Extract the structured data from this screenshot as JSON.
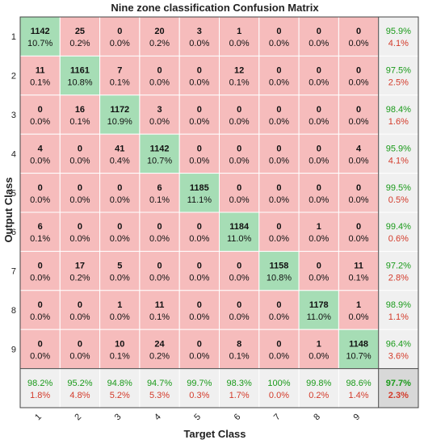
{
  "chart_data": {
    "type": "heatmap",
    "title": "Nine zone classification Confusion Matrix",
    "xlabel": "Target Class",
    "ylabel": "Output Class",
    "x_tick_labels": [
      "1",
      "2",
      "3",
      "4",
      "5",
      "6",
      "7",
      "8",
      "9"
    ],
    "y_tick_labels": [
      "1",
      "2",
      "3",
      "4",
      "5",
      "6",
      "7",
      "8",
      "9"
    ],
    "counts": [
      [
        1142,
        25,
        0,
        20,
        3,
        1,
        0,
        0,
        0
      ],
      [
        11,
        1161,
        7,
        0,
        0,
        12,
        0,
        0,
        0
      ],
      [
        0,
        16,
        1172,
        3,
        0,
        0,
        0,
        0,
        0
      ],
      [
        4,
        0,
        41,
        1142,
        0,
        0,
        0,
        0,
        4
      ],
      [
        0,
        0,
        0,
        6,
        1185,
        0,
        0,
        0,
        0
      ],
      [
        6,
        0,
        0,
        0,
        0,
        1184,
        0,
        1,
        0
      ],
      [
        0,
        17,
        5,
        0,
        0,
        0,
        1158,
        0,
        11
      ],
      [
        0,
        0,
        1,
        11,
        0,
        0,
        0,
        1178,
        1
      ],
      [
        0,
        0,
        10,
        24,
        0,
        8,
        0,
        1,
        1148
      ]
    ],
    "percents": [
      [
        "10.7%",
        "0.2%",
        "0.0%",
        "0.2%",
        "0.0%",
        "0.0%",
        "0.0%",
        "0.0%",
        "0.0%"
      ],
      [
        "0.1%",
        "10.8%",
        "0.1%",
        "0.0%",
        "0.0%",
        "0.1%",
        "0.0%",
        "0.0%",
        "0.0%"
      ],
      [
        "0.0%",
        "0.1%",
        "10.9%",
        "0.0%",
        "0.0%",
        "0.0%",
        "0.0%",
        "0.0%",
        "0.0%"
      ],
      [
        "0.0%",
        "0.0%",
        "0.4%",
        "10.7%",
        "0.0%",
        "0.0%",
        "0.0%",
        "0.0%",
        "0.0%"
      ],
      [
        "0.0%",
        "0.0%",
        "0.0%",
        "0.1%",
        "11.1%",
        "0.0%",
        "0.0%",
        "0.0%",
        "0.0%"
      ],
      [
        "0.1%",
        "0.0%",
        "0.0%",
        "0.0%",
        "0.0%",
        "11.0%",
        "0.0%",
        "0.0%",
        "0.0%"
      ],
      [
        "0.0%",
        "0.2%",
        "0.0%",
        "0.0%",
        "0.0%",
        "0.0%",
        "10.8%",
        "0.0%",
        "0.1%"
      ],
      [
        "0.0%",
        "0.0%",
        "0.0%",
        "0.1%",
        "0.0%",
        "0.0%",
        "0.0%",
        "11.0%",
        "0.0%"
      ],
      [
        "0.0%",
        "0.0%",
        "0.1%",
        "0.2%",
        "0.0%",
        "0.1%",
        "0.0%",
        "0.0%",
        "10.7%"
      ]
    ],
    "row_summary": [
      [
        "95.9%",
        "4.1%"
      ],
      [
        "97.5%",
        "2.5%"
      ],
      [
        "98.4%",
        "1.6%"
      ],
      [
        "95.9%",
        "4.1%"
      ],
      [
        "99.5%",
        "0.5%"
      ],
      [
        "99.4%",
        "0.6%"
      ],
      [
        "97.2%",
        "2.8%"
      ],
      [
        "98.9%",
        "1.1%"
      ],
      [
        "96.4%",
        "3.6%"
      ]
    ],
    "col_summary": [
      [
        "98.2%",
        "1.8%"
      ],
      [
        "95.2%",
        "4.8%"
      ],
      [
        "94.8%",
        "5.2%"
      ],
      [
        "94.7%",
        "5.3%"
      ],
      [
        "99.7%",
        "0.3%"
      ],
      [
        "98.3%",
        "1.7%"
      ],
      [
        "100%",
        "0.0%"
      ],
      [
        "99.8%",
        "0.2%"
      ],
      [
        "98.6%",
        "1.4%"
      ]
    ],
    "overall": [
      "97.7%",
      "2.3%"
    ],
    "colors": {
      "diagonal": "#a6ddb5",
      "off_diagonal": "#f6bcbc",
      "summary": "#f0f0f0",
      "overall": "#d8d8d8",
      "good_text": "#1a9a1a",
      "bad_text": "#d33a2a"
    }
  }
}
